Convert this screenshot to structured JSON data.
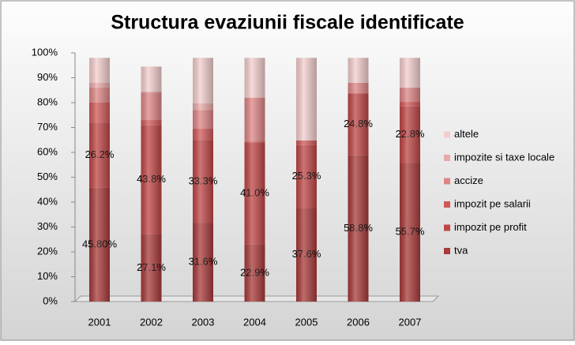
{
  "chart_data": {
    "type": "bar",
    "stacked": true,
    "title": "Structura evaziunii fiscale identificate",
    "categories": [
      "2001",
      "2002",
      "2003",
      "2004",
      "2005",
      "2006",
      "2007"
    ],
    "series": [
      {
        "name": "tva",
        "color": "#a83a3a",
        "values": [
          45.8,
          27.1,
          31.6,
          22.9,
          37.6,
          58.8,
          55.7
        ],
        "value_labels": [
          "45.80%",
          "27.1%",
          "31.6%",
          "22.9%",
          "37.6%",
          "58.8%",
          "55.7%"
        ]
      },
      {
        "name": "impozit pe profit",
        "color": "#bf4646",
        "values": [
          26.2,
          43.8,
          33.3,
          41.0,
          25.3,
          24.8,
          22.8
        ],
        "value_labels": [
          "26.2%",
          "43.8%",
          "33.3%",
          "41.0%",
          "25.3%",
          "24.8%",
          "22.8%"
        ]
      },
      {
        "name": "impozit pe salarii",
        "color": "#d05858",
        "values": [
          8,
          2.1,
          4.6,
          0.5,
          1.9,
          0.2,
          1.8
        ]
      },
      {
        "name": "accize",
        "color": "#de8585",
        "values": [
          6,
          11,
          7.5,
          17.6,
          0,
          4.2,
          5.7
        ]
      },
      {
        "name": "impozite si taxe locale",
        "color": "#e9a9a9",
        "values": [
          2,
          0.5,
          2.7,
          0,
          0,
          0,
          0
        ]
      },
      {
        "name": "altele",
        "color": "#f3cdcd",
        "values": [
          10,
          10,
          18.3,
          16,
          33.2,
          10,
          12
        ]
      }
    ],
    "ylim": [
      0,
      100
    ],
    "yticks": [
      {
        "value": 0,
        "label": "0%"
      },
      {
        "value": 10,
        "label": "10%"
      },
      {
        "value": 20,
        "label": "20%"
      },
      {
        "value": 30,
        "label": "30%"
      },
      {
        "value": 40,
        "label": "40%"
      },
      {
        "value": 50,
        "label": "50%"
      },
      {
        "value": 60,
        "label": "60%"
      },
      {
        "value": 70,
        "label": "70%"
      },
      {
        "value": 80,
        "label": "80%"
      },
      {
        "value": 90,
        "label": "90%"
      },
      {
        "value": 100,
        "label": "100%"
      }
    ],
    "legend": "right"
  }
}
